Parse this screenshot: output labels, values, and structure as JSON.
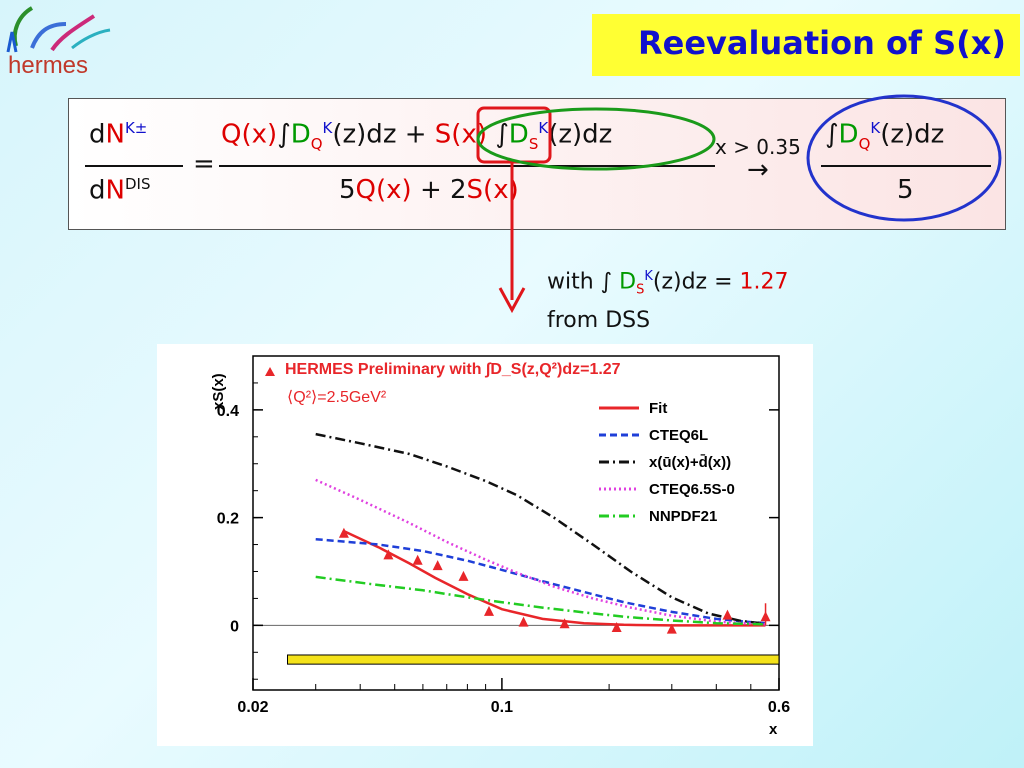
{
  "logo": {
    "text": "hermes"
  },
  "title": "Reevaluation of S(x)",
  "formula": {
    "lhs_num_d": "d",
    "lhs_num_N": "N",
    "lhs_num_sup": "K±",
    "lhs_den_d": "d",
    "lhs_den_N": "N",
    "lhs_den_sup": "DIS",
    "equals": "=",
    "num_Qx": "Q(x)",
    "int1": "∫",
    "D1": "D",
    "sub_Q": "Q",
    "sup_K": "K",
    "zdz1": "(z)dz",
    "plus": "+",
    "num_Sx": "S(x)",
    "int2": "∫",
    "D2": "D",
    "sub_S": "S",
    "zdz2": "(z)dz",
    "den_5": "5",
    "den_Qx": "Q(x)",
    "den_plus2": "+ 2",
    "den_Sx": "S(x)",
    "limit": "x > 0.35",
    "arrow": "→",
    "rhs_int": "∫",
    "rhs_D": "D",
    "rhs_zdz": "(z)dz",
    "rhs_5": "5"
  },
  "note": {
    "with": "with ∫ ",
    "D": "D",
    "sub": "S",
    "sup": "K",
    "zdz": "(z)dz = ",
    "value": "1.27",
    "source": "from DSS"
  },
  "chart_data": {
    "type": "scatter",
    "title": "HERMES Preliminary with ∫D_S(z,Q²)dz=1.27",
    "subtitle": "⟨Q²⟩=2.5GeV²",
    "xlabel": "x",
    "ylabel": "xS(x)",
    "xscale": "log",
    "xlim": [
      0.02,
      0.6
    ],
    "ylim": [
      -0.12,
      0.5
    ],
    "xticks": [
      "0.02",
      "0.1",
      "0.6"
    ],
    "yticks": [
      "0",
      "0.2",
      "0.4"
    ],
    "legend_placement": "right",
    "legend": [
      {
        "label": "Fit",
        "color": "#e8262a",
        "dash": "solid"
      },
      {
        "label": "CTEQ6L",
        "color": "#1f3fd8",
        "dash": "dash"
      },
      {
        "label": "x(ū(x)+d̄(x))",
        "color": "#111111",
        "dash": "dashdot"
      },
      {
        "label": "CTEQ6.5S-0",
        "color": "#e040e0",
        "dash": "dot"
      },
      {
        "label": "NNPDF21",
        "color": "#22cc22",
        "dash": "dashdot"
      }
    ],
    "points": {
      "name": "HERMES Preliminary",
      "color": "#e8262a",
      "x": [
        0.036,
        0.048,
        0.058,
        0.066,
        0.078,
        0.092,
        0.115,
        0.15,
        0.21,
        0.3,
        0.43,
        0.55
      ],
      "y": [
        0.17,
        0.13,
        0.12,
        0.11,
        0.09,
        0.025,
        0.005,
        0.002,
        -0.005,
        -0.008,
        0.018,
        0.015
      ]
    },
    "curves": [
      {
        "name": "Fit",
        "color": "#e8262a",
        "dash": "solid",
        "x": [
          0.036,
          0.045,
          0.055,
          0.065,
          0.08,
          0.1,
          0.13,
          0.17,
          0.22,
          0.3,
          0.42,
          0.55
        ],
        "y": [
          0.175,
          0.145,
          0.115,
          0.088,
          0.058,
          0.03,
          0.012,
          0.004,
          0.001,
          0.0,
          0.0,
          0.0
        ]
      },
      {
        "name": "CTEQ6L",
        "color": "#1f3fd8",
        "dash": "dash",
        "x": [
          0.03,
          0.045,
          0.06,
          0.08,
          0.1,
          0.13,
          0.17,
          0.22,
          0.3,
          0.4,
          0.5,
          0.55
        ],
        "y": [
          0.16,
          0.15,
          0.138,
          0.12,
          0.103,
          0.082,
          0.062,
          0.043,
          0.025,
          0.012,
          0.006,
          0.004
        ]
      },
      {
        "name": "x(ū(x)+d̄(x))",
        "color": "#111111",
        "dash": "dashdot",
        "x": [
          0.03,
          0.04,
          0.055,
          0.07,
          0.09,
          0.11,
          0.14,
          0.18,
          0.23,
          0.3,
          0.38,
          0.47,
          0.55
        ],
        "y": [
          0.355,
          0.338,
          0.318,
          0.295,
          0.268,
          0.242,
          0.2,
          0.15,
          0.1,
          0.052,
          0.022,
          0.008,
          0.003
        ]
      },
      {
        "name": "CTEQ6.5S-0",
        "color": "#e040e0",
        "dash": "dot",
        "x": [
          0.03,
          0.04,
          0.055,
          0.07,
          0.09,
          0.11,
          0.14,
          0.18,
          0.23,
          0.3,
          0.4,
          0.55
        ],
        "y": [
          0.27,
          0.233,
          0.19,
          0.155,
          0.122,
          0.098,
          0.072,
          0.05,
          0.033,
          0.018,
          0.007,
          0.002
        ]
      },
      {
        "name": "NNPDF21",
        "color": "#22cc22",
        "dash": "dashdot",
        "x": [
          0.03,
          0.045,
          0.06,
          0.08,
          0.1,
          0.13,
          0.17,
          0.22,
          0.3,
          0.4,
          0.55
        ],
        "y": [
          0.09,
          0.075,
          0.065,
          0.052,
          0.043,
          0.033,
          0.024,
          0.016,
          0.009,
          0.004,
          0.002
        ]
      }
    ],
    "error_band": {
      "name": "systematic band",
      "color": "#f4e21a",
      "x": [
        0.025,
        0.6
      ],
      "y_low": -0.072,
      "y_high": -0.055
    }
  }
}
